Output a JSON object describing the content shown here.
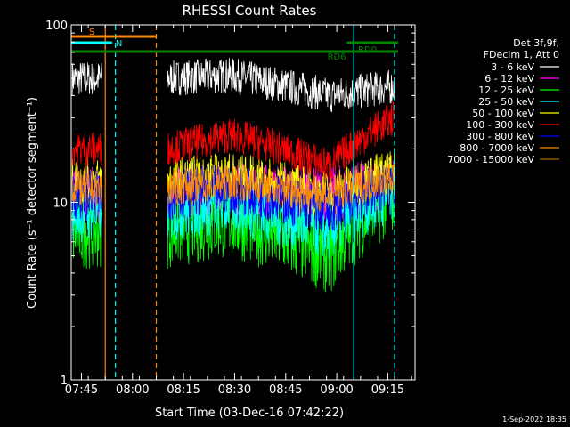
{
  "chart_data": {
    "type": "line",
    "title": "RHESSI Count Rates",
    "xlabel": "Start Time (03-Dec-16 07:42:22)",
    "ylabel": "Count Rate (s⁻¹ detector segment⁻¹)",
    "yscale": "log",
    "ylim": [
      1,
      100
    ],
    "xlim_minutes_after_0742": [
      0,
      101
    ],
    "x_unit": "time (HH:MM, 03-Dec-16)",
    "x_tick_labels": [
      "07:45",
      "08:00",
      "08:15",
      "08:30",
      "08:45",
      "09:00",
      "09:15"
    ],
    "y_tick_labels": [
      "1",
      "10",
      "100"
    ],
    "legend_header": [
      "Det 3f,9f,",
      "FDecim 1, Att 0"
    ],
    "legend_placement": "right",
    "data_gap": {
      "from": "07:51",
      "to": "08:10"
    },
    "series": [
      {
        "label": "3 - 6 keV",
        "color": "#ffffff",
        "approx_level_before_gap": 50,
        "approx_level_peak": 52,
        "approx_level_late": 40,
        "approx_level_end": 45
      },
      {
        "label": "6 - 12 keV",
        "color": "#ff00ff",
        "approx_level_before_gap": 11,
        "approx_level_peak": 12,
        "approx_level_late": 11,
        "approx_level_end": 13
      },
      {
        "label": "12 - 25 keV",
        "color": "#00ff00",
        "approx_level_before_gap": 7,
        "approx_level_peak": 8,
        "approx_level_late": 5,
        "approx_level_end": 11
      },
      {
        "label": "25 - 50 keV",
        "color": "#00ffff",
        "approx_level_before_gap": 9,
        "approx_level_peak": 10,
        "approx_level_late": 7,
        "approx_level_end": 12
      },
      {
        "label": "50 - 100 keV",
        "color": "#ffff00",
        "approx_level_before_gap": 13,
        "approx_level_peak": 14,
        "approx_level_late": 11,
        "approx_level_end": 15
      },
      {
        "label": "100 - 300 keV",
        "color": "#ff0000",
        "approx_level_before_gap": 20,
        "approx_level_peak": 24,
        "approx_level_late": 16,
        "approx_level_end": 30
      },
      {
        "label": "300 - 800 keV",
        "color": "#0000ff",
        "approx_level_before_gap": 11,
        "approx_level_peak": 12,
        "approx_level_late": 9,
        "approx_level_end": 13
      },
      {
        "label": "800 - 7000 keV",
        "color": "#ff8800",
        "approx_level_before_gap": 12,
        "approx_level_peak": 13,
        "approx_level_late": 11,
        "approx_level_end": 14
      },
      {
        "label": "7000 - 15000 keV",
        "color": "#aa6600",
        "approx_level_before_gap": null,
        "approx_level_peak": null,
        "approx_level_late": null,
        "approx_level_end": null
      }
    ],
    "annotations": [
      {
        "text": "S",
        "color": "#ff8800",
        "meaning": "SAA interval",
        "from": "07:42",
        "to": "08:07"
      },
      {
        "text": "N",
        "color": "#00ffff",
        "meaning": "night",
        "from": "07:42",
        "to": "07:54"
      },
      {
        "text": "RD6",
        "color": "#008800",
        "meaning": "decimation level",
        "from": "07:42",
        "to": "09:18"
      },
      {
        "text": "RD0",
        "color": "#008800",
        "meaning": "decimation level",
        "from": "09:03",
        "to": "09:18"
      }
    ],
    "vertical_markers": [
      {
        "time": "07:52",
        "color": "#ff8800",
        "style": "solid"
      },
      {
        "time": "07:55",
        "color": "#00ffff",
        "style": "dashed"
      },
      {
        "time": "08:07",
        "color": "#ff8800",
        "style": "dashed"
      },
      {
        "time": "09:05",
        "color": "#00ffff",
        "style": "solid"
      },
      {
        "time": "09:17",
        "color": "#00ffff",
        "style": "dashed"
      }
    ]
  },
  "footer": {
    "timestamp": "1-Sep-2022 18:35"
  }
}
